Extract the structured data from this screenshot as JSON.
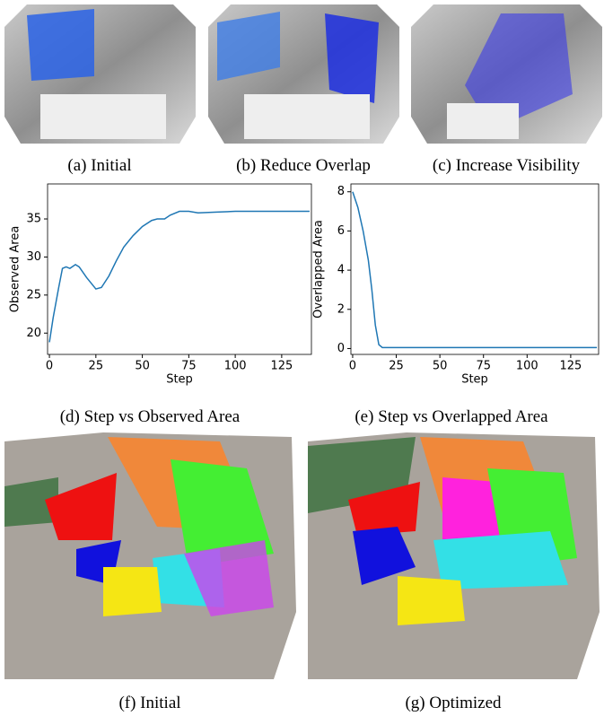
{
  "image_captions": [
    "(a) Initial",
    "(b) Reduce Overlap",
    "(c) Increase Visibility",
    "(f) Initial",
    "(g) Optimized"
  ],
  "chart_data": [
    {
      "type": "line",
      "caption": "(d) Step vs Observed Area",
      "xlabel": "Step",
      "ylabel": "Observed Area",
      "x": [
        0,
        2,
        5,
        7,
        9,
        11,
        14,
        16,
        20,
        25,
        28,
        32,
        36,
        40,
        45,
        50,
        55,
        58,
        62,
        65,
        70,
        75,
        80,
        90,
        100,
        120,
        140
      ],
      "series": [
        {
          "name": "Observed Area",
          "color": "#1f77b4",
          "values": [
            18.8,
            22,
            26,
            28.5,
            28.7,
            28.5,
            29,
            28.7,
            27.3,
            25.8,
            26,
            27.5,
            29.5,
            31.3,
            32.8,
            34,
            34.8,
            35,
            35,
            35.5,
            36,
            36,
            35.8,
            35.9,
            36,
            36,
            36
          ]
        }
      ],
      "xlim": [
        -1,
        141
      ],
      "ylim": [
        17.2,
        39.6
      ],
      "xticks": [
        0,
        25,
        50,
        75,
        100,
        125
      ],
      "yticks": [
        20,
        25,
        30,
        35
      ]
    },
    {
      "type": "line",
      "caption": "(e) Step vs Overlapped Area",
      "xlabel": "Step",
      "ylabel": "Overlapped Area",
      "x": [
        0,
        3,
        6,
        9,
        11,
        13,
        15,
        17,
        25,
        50,
        75,
        100,
        125,
        140
      ],
      "series": [
        {
          "name": "Overlapped Area",
          "color": "#1f77b4",
          "values": [
            8,
            7.2,
            6,
            4.5,
            3,
            1.2,
            0.2,
            0.05,
            0.05,
            0.05,
            0.05,
            0.05,
            0.05,
            0.05
          ]
        }
      ],
      "xlim": [
        -1,
        141
      ],
      "ylim": [
        -0.3,
        8.4
      ],
      "xticks": [
        0,
        25,
        50,
        75,
        100,
        125
      ],
      "yticks": [
        0,
        2,
        4,
        6,
        8
      ]
    }
  ]
}
